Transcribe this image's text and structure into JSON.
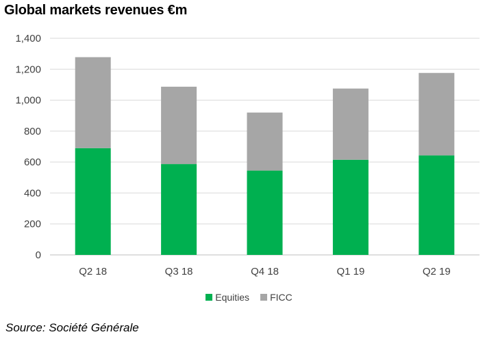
{
  "title": "Global markets revenues €m",
  "source": "Source: Société Générale",
  "colors": {
    "equities": "#00b050",
    "ficc": "#a6a6a6",
    "grid": "#d9d9d9",
    "axis": "#bfbfbf"
  },
  "chart_data": {
    "type": "bar",
    "stacked": true,
    "title": "Global markets revenues €m",
    "categories": [
      "Q2 18",
      "Q3 18",
      "Q4 18",
      "Q1 19",
      "Q2 19"
    ],
    "series": [
      {
        "name": "Equities",
        "values": [
          690,
          587,
          545,
          615,
          643
        ]
      },
      {
        "name": "FICC",
        "values": [
          588,
          500,
          375,
          460,
          533
        ]
      }
    ],
    "ylim": [
      0,
      1400
    ],
    "yticks": [
      0,
      200,
      400,
      600,
      800,
      1000,
      1200,
      1400
    ],
    "ytick_labels": [
      "0",
      "200",
      "400",
      "600",
      "800",
      "1,000",
      "1,200",
      "1,400"
    ],
    "grid": true,
    "legend": "bottom"
  }
}
